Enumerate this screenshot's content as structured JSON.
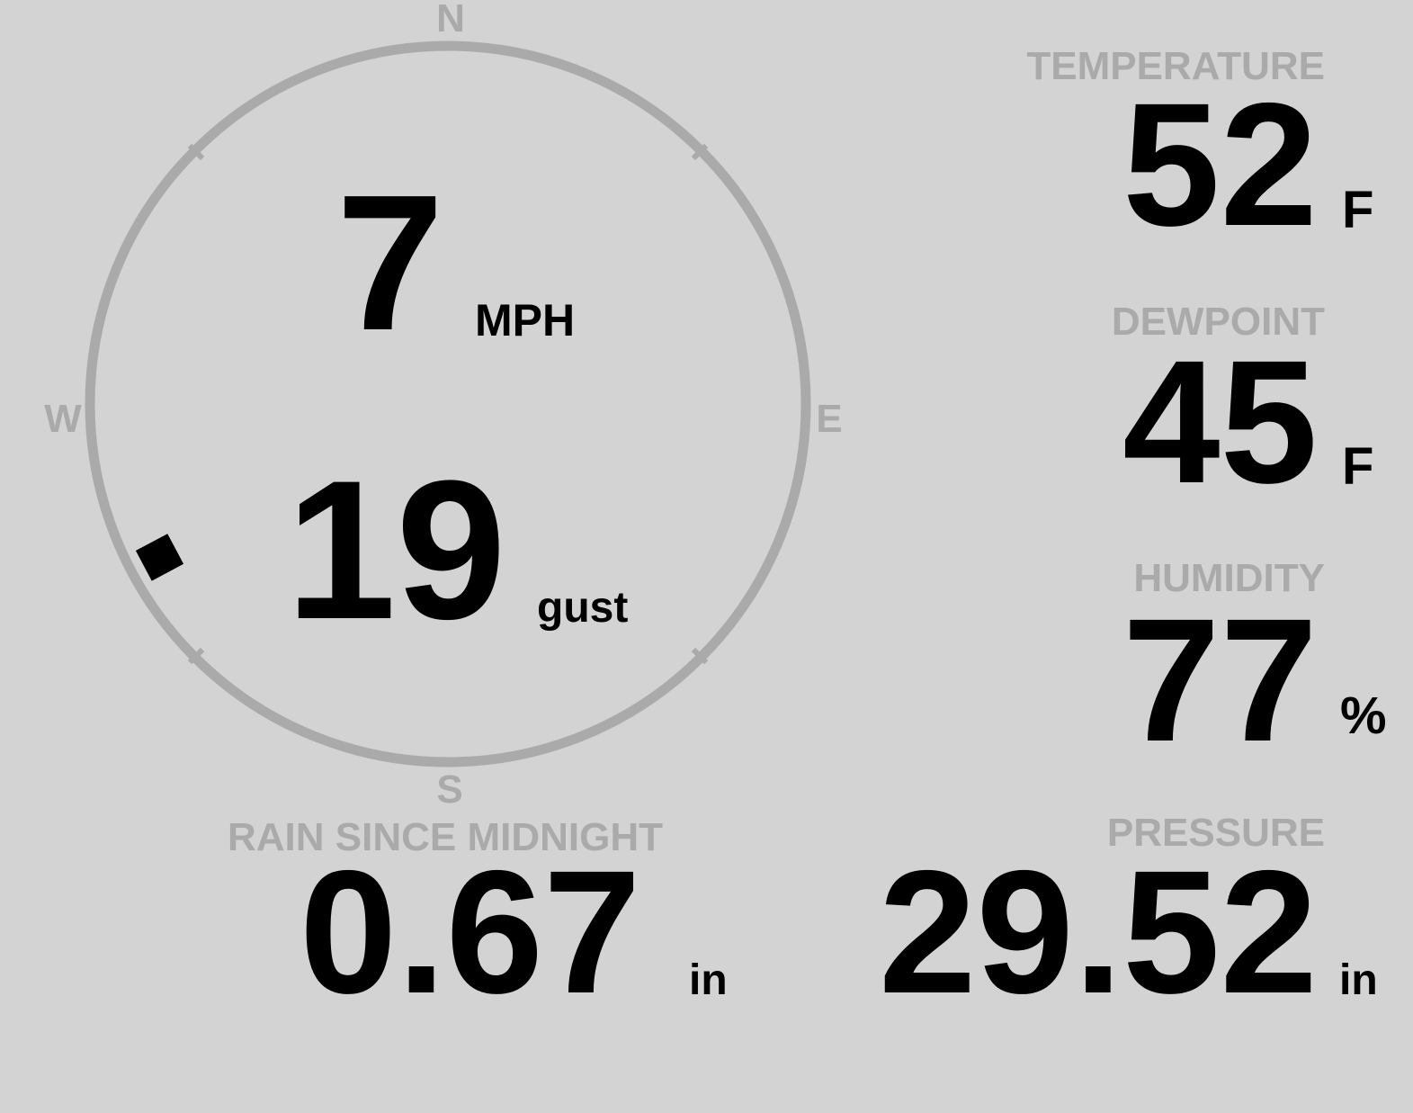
{
  "colors": {
    "background": "#d3d3d3",
    "label": "#aaaaaa",
    "value": "#000000"
  },
  "wind": {
    "compass": {
      "n": "N",
      "e": "E",
      "s": "S",
      "w": "W"
    },
    "speed": "7",
    "speed_unit": "MPH",
    "gust": "19",
    "gust_unit": "gust",
    "direction_degrees": 242
  },
  "temperature": {
    "label": "TEMPERATURE",
    "value": "52",
    "unit": "F"
  },
  "dewpoint": {
    "label": "DEWPOINT",
    "value": "45",
    "unit": "F"
  },
  "humidity": {
    "label": "HUMIDITY",
    "value": "77",
    "unit": "%"
  },
  "rain": {
    "label": "RAIN SINCE MIDNIGHT",
    "value": "0.67",
    "unit": "in"
  },
  "pressure": {
    "label": "PRESSURE",
    "value": "29.52",
    "unit": "in"
  }
}
